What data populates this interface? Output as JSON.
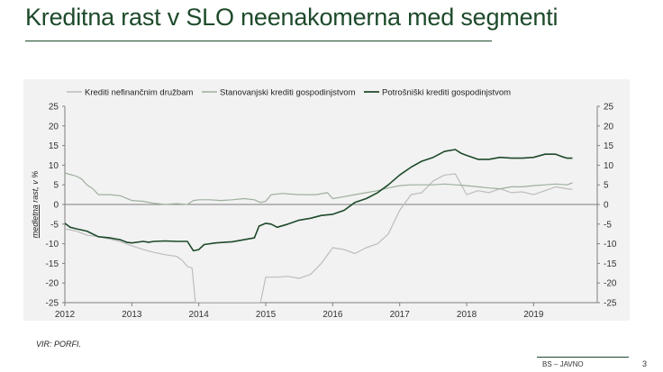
{
  "slide": {
    "title": "Kreditna rast v SLO neenakomerna med segmenti",
    "source": "VIR: PORFI.",
    "footer_label": "BS – JAVNO",
    "page_number": "3"
  },
  "chart_data": {
    "type": "line",
    "title": "",
    "ylabel": "medletna rast, v %",
    "ylabel_underlined": "medletna",
    "xlabel": "",
    "ylim": [
      -25,
      25
    ],
    "yticks": [
      -25,
      -20,
      -15,
      -10,
      -5,
      0,
      5,
      10,
      15,
      20,
      25
    ],
    "xlim": [
      2012,
      2019.95
    ],
    "xticks": [
      {
        "value": 2012,
        "label": "2012"
      },
      {
        "value": 2013,
        "label": "2013"
      },
      {
        "value": 2014,
        "label": "2014"
      },
      {
        "value": 2015,
        "label": "2015"
      },
      {
        "value": 2016,
        "label": "2016"
      },
      {
        "value": 2017,
        "label": "2017"
      },
      {
        "value": 2018,
        "label": "2018"
      },
      {
        "value": 2019,
        "label": "2019"
      }
    ],
    "grid": false,
    "secondary_y_axis": true,
    "legend_position": "top",
    "series": [
      {
        "name": "Krediti nefinančnim družbam",
        "color": "#bdbdbd",
        "width": 1.2,
        "points": [
          [
            2012.0,
            -6.2
          ],
          [
            2012.17,
            -6.8
          ],
          [
            2012.33,
            -7.8
          ],
          [
            2012.5,
            -8.2
          ],
          [
            2012.67,
            -8.8
          ],
          [
            2012.83,
            -9.5
          ],
          [
            2013.0,
            -10.5
          ],
          [
            2013.17,
            -11.5
          ],
          [
            2013.33,
            -12.2
          ],
          [
            2013.5,
            -12.8
          ],
          [
            2013.67,
            -13.2
          ],
          [
            2013.75,
            -14.2
          ],
          [
            2013.83,
            -15.8
          ],
          [
            2013.9,
            -16.2
          ],
          [
            2013.95,
            -25
          ],
          [
            2014.92,
            -25
          ],
          [
            2015.0,
            -18.5
          ],
          [
            2015.17,
            -18.5
          ],
          [
            2015.33,
            -18.3
          ],
          [
            2015.5,
            -18.8
          ],
          [
            2015.67,
            -17.8
          ],
          [
            2015.83,
            -15.0
          ],
          [
            2016.0,
            -11.0
          ],
          [
            2016.17,
            -11.5
          ],
          [
            2016.33,
            -12.5
          ],
          [
            2016.5,
            -11.0
          ],
          [
            2016.67,
            -10.0
          ],
          [
            2016.83,
            -7.5
          ],
          [
            2017.0,
            -1.5
          ],
          [
            2017.17,
            2.5
          ],
          [
            2017.33,
            3.0
          ],
          [
            2017.5,
            6.0
          ],
          [
            2017.67,
            7.5
          ],
          [
            2017.83,
            7.8
          ],
          [
            2017.92,
            5.0
          ],
          [
            2018.0,
            2.5
          ],
          [
            2018.17,
            3.5
          ],
          [
            2018.33,
            3.0
          ],
          [
            2018.5,
            4.0
          ],
          [
            2018.67,
            3.0
          ],
          [
            2018.83,
            3.2
          ],
          [
            2019.0,
            2.5
          ],
          [
            2019.17,
            3.5
          ],
          [
            2019.33,
            4.5
          ],
          [
            2019.5,
            4.0
          ],
          [
            2019.58,
            3.8
          ]
        ]
      },
      {
        "name": "Stanovanjski krediti gospodinjstvom",
        "color": "#9eaf9e",
        "width": 1.2,
        "points": [
          [
            2012.0,
            8.0
          ],
          [
            2012.17,
            7.2
          ],
          [
            2012.25,
            6.5
          ],
          [
            2012.33,
            5.0
          ],
          [
            2012.42,
            4.0
          ],
          [
            2012.5,
            2.5
          ],
          [
            2012.67,
            2.5
          ],
          [
            2012.83,
            2.2
          ],
          [
            2013.0,
            1.0
          ],
          [
            2013.17,
            0.8
          ],
          [
            2013.33,
            0.3
          ],
          [
            2013.5,
            0.0
          ],
          [
            2013.67,
            0.2
          ],
          [
            2013.83,
            0.0
          ],
          [
            2013.92,
            1.0
          ],
          [
            2014.0,
            1.2
          ],
          [
            2014.17,
            1.2
          ],
          [
            2014.33,
            1.0
          ],
          [
            2014.5,
            1.2
          ],
          [
            2014.67,
            1.5
          ],
          [
            2014.83,
            1.2
          ],
          [
            2014.92,
            0.5
          ],
          [
            2015.0,
            0.8
          ],
          [
            2015.08,
            2.5
          ],
          [
            2015.25,
            2.8
          ],
          [
            2015.5,
            2.5
          ],
          [
            2015.75,
            2.5
          ],
          [
            2015.92,
            3.0
          ],
          [
            2016.0,
            1.5
          ],
          [
            2016.17,
            2.0
          ],
          [
            2016.33,
            2.5
          ],
          [
            2016.5,
            3.0
          ],
          [
            2016.67,
            3.5
          ],
          [
            2016.83,
            4.2
          ],
          [
            2017.0,
            4.8
          ],
          [
            2017.17,
            5.0
          ],
          [
            2017.33,
            5.0
          ],
          [
            2017.5,
            5.0
          ],
          [
            2017.67,
            5.2
          ],
          [
            2017.83,
            5.0
          ],
          [
            2018.0,
            4.8
          ],
          [
            2018.17,
            4.5
          ],
          [
            2018.33,
            4.2
          ],
          [
            2018.5,
            4.0
          ],
          [
            2018.67,
            4.5
          ],
          [
            2018.83,
            4.5
          ],
          [
            2019.0,
            4.8
          ],
          [
            2019.17,
            5.0
          ],
          [
            2019.33,
            5.2
          ],
          [
            2019.5,
            5.0
          ],
          [
            2019.58,
            5.5
          ]
        ]
      },
      {
        "name": "Potrošniški krediti gospodinjstvom",
        "color": "#1d4a2a",
        "width": 1.6,
        "points": [
          [
            2012.0,
            -4.8
          ],
          [
            2012.08,
            -5.8
          ],
          [
            2012.17,
            -6.2
          ],
          [
            2012.33,
            -6.8
          ],
          [
            2012.5,
            -8.2
          ],
          [
            2012.67,
            -8.5
          ],
          [
            2012.83,
            -9.0
          ],
          [
            2012.92,
            -9.6
          ],
          [
            2013.0,
            -9.8
          ],
          [
            2013.17,
            -9.4
          ],
          [
            2013.25,
            -9.6
          ],
          [
            2013.33,
            -9.4
          ],
          [
            2013.5,
            -9.3
          ],
          [
            2013.67,
            -9.4
          ],
          [
            2013.83,
            -9.4
          ],
          [
            2013.92,
            -11.8
          ],
          [
            2014.0,
            -11.5
          ],
          [
            2014.08,
            -10.2
          ],
          [
            2014.25,
            -9.8
          ],
          [
            2014.5,
            -9.5
          ],
          [
            2014.67,
            -9.0
          ],
          [
            2014.83,
            -8.5
          ],
          [
            2014.9,
            -5.5
          ],
          [
            2015.0,
            -4.8
          ],
          [
            2015.08,
            -5.0
          ],
          [
            2015.17,
            -5.8
          ],
          [
            2015.33,
            -5.0
          ],
          [
            2015.5,
            -4.0
          ],
          [
            2015.67,
            -3.5
          ],
          [
            2015.83,
            -2.8
          ],
          [
            2016.0,
            -2.5
          ],
          [
            2016.17,
            -1.5
          ],
          [
            2016.33,
            0.5
          ],
          [
            2016.5,
            1.5
          ],
          [
            2016.67,
            3.0
          ],
          [
            2016.83,
            5.0
          ],
          [
            2017.0,
            7.5
          ],
          [
            2017.17,
            9.5
          ],
          [
            2017.33,
            11.0
          ],
          [
            2017.5,
            12.0
          ],
          [
            2017.67,
            13.5
          ],
          [
            2017.83,
            14.0
          ],
          [
            2017.92,
            13.0
          ],
          [
            2018.0,
            12.5
          ],
          [
            2018.17,
            11.5
          ],
          [
            2018.33,
            11.5
          ],
          [
            2018.5,
            12.0
          ],
          [
            2018.67,
            11.8
          ],
          [
            2018.83,
            11.8
          ],
          [
            2019.0,
            12.0
          ],
          [
            2019.17,
            12.8
          ],
          [
            2019.33,
            12.8
          ],
          [
            2019.42,
            12.2
          ],
          [
            2019.5,
            11.8
          ],
          [
            2019.58,
            11.8
          ]
        ]
      }
    ]
  }
}
